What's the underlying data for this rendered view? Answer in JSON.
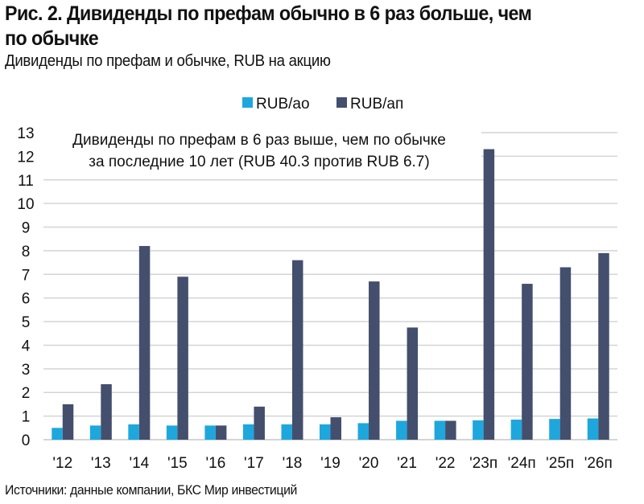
{
  "header": {
    "title_line1": "Рис. 2. Дивиденды по префам обычно в 6 раз больше, чем",
    "title_line2": "по обычке",
    "subtitle": "Дивиденды по префам и обычке, RUB на акцию"
  },
  "footer": {
    "source": "Источники: данные компании, БКС Мир инвестиций"
  },
  "chart_data": {
    "type": "bar",
    "title": "Дивиденды по префам и обычке, RUB на акцию",
    "xlabel": "",
    "ylabel": "",
    "ylim": [
      0,
      13
    ],
    "yticks": [
      "0",
      "1",
      "2",
      "3",
      "4",
      "5",
      "6",
      "7",
      "8",
      "9",
      "10",
      "11",
      "12",
      "13"
    ],
    "grid": true,
    "legend_position": "top-center",
    "categories": [
      "'12",
      "'13",
      "'14",
      "'15",
      "'16",
      "'17",
      "'18",
      "'19",
      "'20",
      "'21",
      "'22",
      "'23п",
      "'24п",
      "'25п",
      "'26п"
    ],
    "series": [
      {
        "name": "RUB/ао",
        "color": "#1ea7dd",
        "values": [
          0.5,
          0.6,
          0.65,
          0.6,
          0.6,
          0.65,
          0.65,
          0.65,
          0.7,
          0.8,
          0.8,
          0.82,
          0.85,
          0.88,
          0.9
        ]
      },
      {
        "name": "RUB/ап",
        "color": "#444f6e",
        "values": [
          1.5,
          2.35,
          8.2,
          6.9,
          0.6,
          1.4,
          7.6,
          0.95,
          6.7,
          4.75,
          0.8,
          12.3,
          6.6,
          7.3,
          7.9
        ]
      }
    ],
    "annotation": {
      "line1": "Дивиденды по префам в 6 раз выше, чем по обычке",
      "line2": "за последние 10 лет (RUB 40.3 против RUB 6.7)"
    },
    "grid_color": "#d4d4d4"
  }
}
